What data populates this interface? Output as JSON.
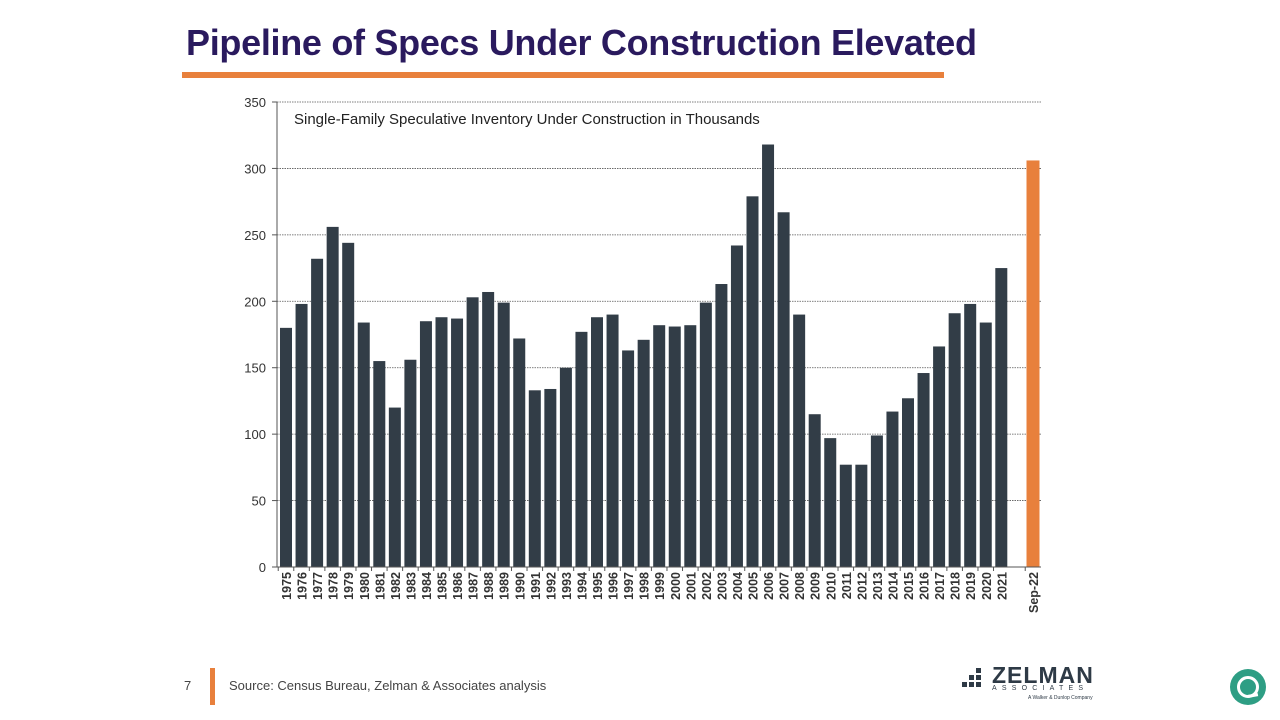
{
  "title": "Pipeline of Specs Under Construction Elevated",
  "footer": {
    "page_number": "7",
    "source": "Source: Census Bureau, Zelman & Associates analysis"
  },
  "logo": {
    "name": "ZELMAN",
    "sub": "ASSOCIATES",
    "tagline": "A Walker & Dunlop Company"
  },
  "colors": {
    "bar": "#323d47",
    "highlight": "#e8803c",
    "title": "#2a1a5e",
    "grid": "#555555"
  },
  "chart_data": {
    "type": "bar",
    "title": "Single-Family Speculative Inventory Under Construction in Thousands",
    "xlabel": "",
    "ylabel": "",
    "ylim": [
      0,
      350
    ],
    "yticks": [
      0,
      50,
      100,
      150,
      200,
      250,
      300,
      350
    ],
    "grid": true,
    "legend": "none",
    "categories": [
      "1975",
      "1976",
      "1977",
      "1978",
      "1979",
      "1980",
      "1981",
      "1982",
      "1983",
      "1984",
      "1985",
      "1986",
      "1987",
      "1988",
      "1989",
      "1990",
      "1991",
      "1992",
      "1993",
      "1994",
      "1995",
      "1996",
      "1997",
      "1998",
      "1999",
      "2000",
      "2001",
      "2002",
      "2003",
      "2004",
      "2005",
      "2006",
      "2007",
      "2008",
      "2009",
      "2010",
      "2011",
      "2012",
      "2013",
      "2014",
      "2015",
      "2016",
      "2017",
      "2018",
      "2019",
      "2020",
      "2021",
      "Sep-22"
    ],
    "values": [
      180,
      198,
      232,
      256,
      244,
      184,
      155,
      120,
      156,
      185,
      188,
      187,
      203,
      207,
      199,
      172,
      133,
      134,
      150,
      177,
      188,
      190,
      163,
      171,
      182,
      181,
      182,
      199,
      213,
      242,
      279,
      318,
      267,
      190,
      115,
      97,
      77,
      77,
      99,
      117,
      127,
      146,
      166,
      191,
      198,
      184,
      225,
      306
    ],
    "highlight_category": "Sep-22"
  }
}
